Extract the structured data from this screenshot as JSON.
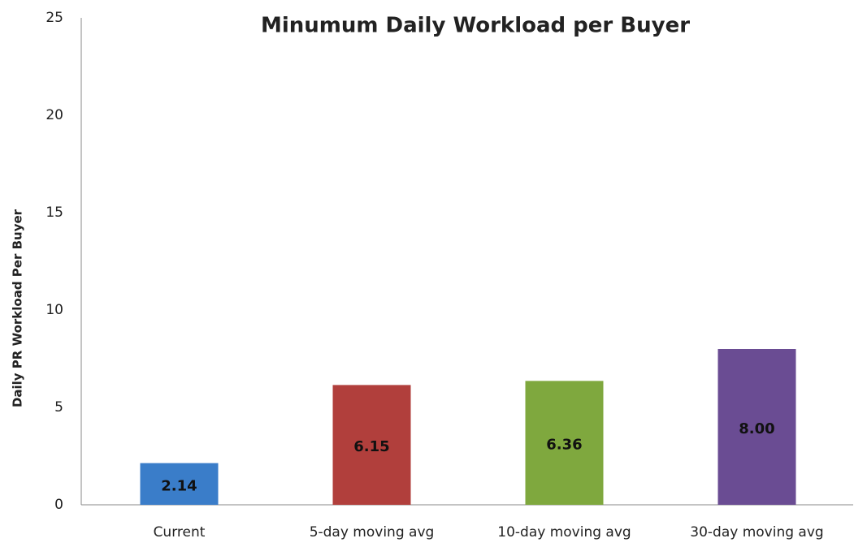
{
  "chart_data": {
    "type": "bar",
    "title": "Minumum Daily Workload per Buyer",
    "y_label": "Daily PR Workload Per Buyer",
    "categories": [
      "Current",
      "5-day moving avg",
      "10-day moving avg",
      "30-day moving avg"
    ],
    "values": [
      2.14,
      6.15,
      6.36,
      8.0
    ],
    "value_labels": [
      "2.14",
      "6.15",
      "6.36",
      "8.00"
    ],
    "colors": [
      "#3a7dc9",
      "#b13f3c",
      "#7fa83e",
      "#6a4c93"
    ],
    "ylim": [
      0,
      25
    ],
    "yticks": [
      0,
      5,
      10,
      15,
      20,
      25
    ],
    "grid": false
  }
}
